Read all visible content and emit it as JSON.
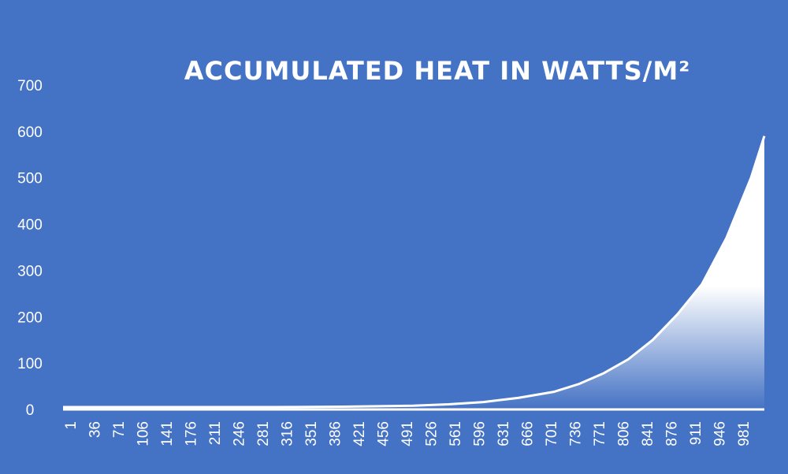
{
  "chart_data": {
    "type": "area",
    "title": "ACCUMULATED HEAT IN WATTS/M²",
    "xlabel": "",
    "ylabel": "",
    "ylim": [
      0,
      700
    ],
    "yticks": [
      0,
      100,
      200,
      300,
      400,
      500,
      600,
      700
    ],
    "xlim": [
      1,
      1000
    ],
    "xticks": [
      "1",
      "36",
      "71",
      "106",
      "141",
      "176",
      "211",
      "246",
      "281",
      "316",
      "351",
      "386",
      "421",
      "456",
      "491",
      "526",
      "561",
      "596",
      "631",
      "666",
      "701",
      "736",
      "771",
      "806",
      "841",
      "876",
      "911",
      "946",
      "981"
    ],
    "grid": false,
    "legend": "none",
    "series": [
      {
        "x": [
          1,
          100,
          200,
          300,
          400,
          500,
          550,
          600,
          650,
          700,
          736,
          771,
          806,
          841,
          876,
          911,
          946,
          981,
          1000
        ],
        "y": [
          5,
          5,
          5,
          5,
          6,
          8,
          11,
          16,
          25,
          38,
          55,
          78,
          108,
          150,
          205,
          270,
          370,
          500,
          590
        ]
      }
    ],
    "colors": {
      "background": "#4472c4",
      "fill_top": "#ffffff",
      "fill_bottom": "#4472c4",
      "axis": "#ffffff",
      "text": "#ffffff"
    }
  }
}
